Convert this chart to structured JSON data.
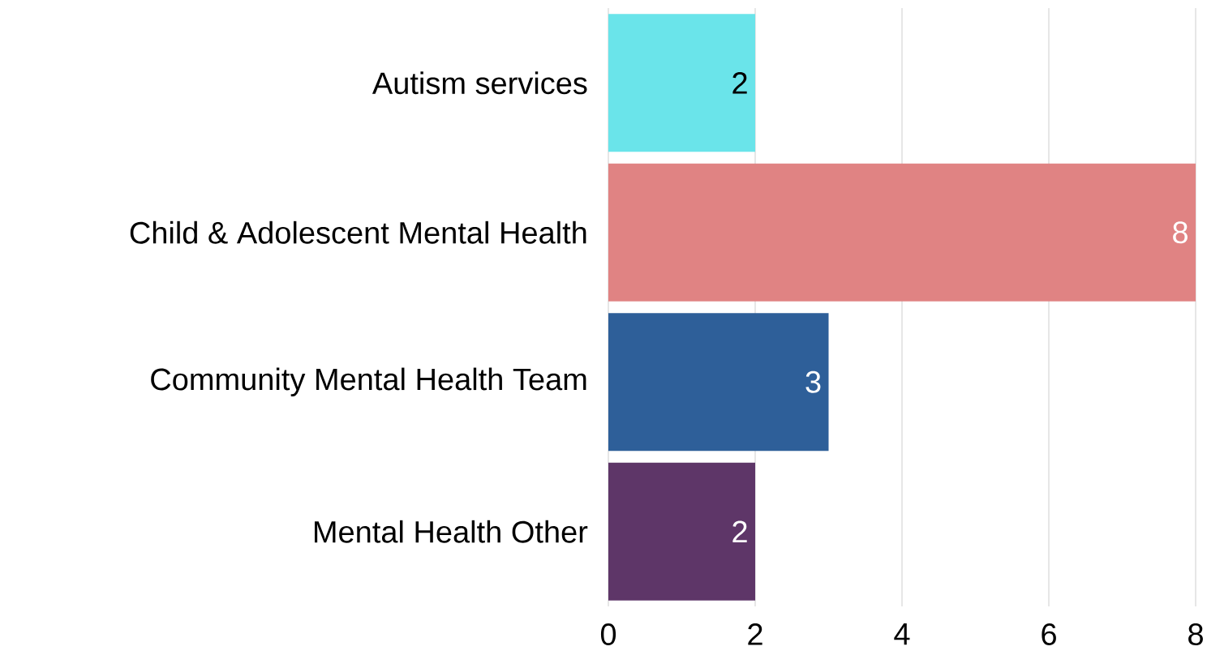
{
  "chart_data": {
    "type": "bar",
    "orientation": "horizontal",
    "categories": [
      "Autism services",
      "Child & Adolescent Mental Health",
      "Community Mental Health Team",
      "Mental Health Other"
    ],
    "values": [
      2,
      8,
      3,
      2
    ],
    "colors": [
      "#6ae4ea",
      "#e08383",
      "#2e5f99",
      "#5e3668"
    ],
    "xlim": [
      0,
      8
    ],
    "xticks": [
      0,
      2,
      4,
      6,
      8
    ],
    "grid": "x",
    "data_labels": true
  }
}
